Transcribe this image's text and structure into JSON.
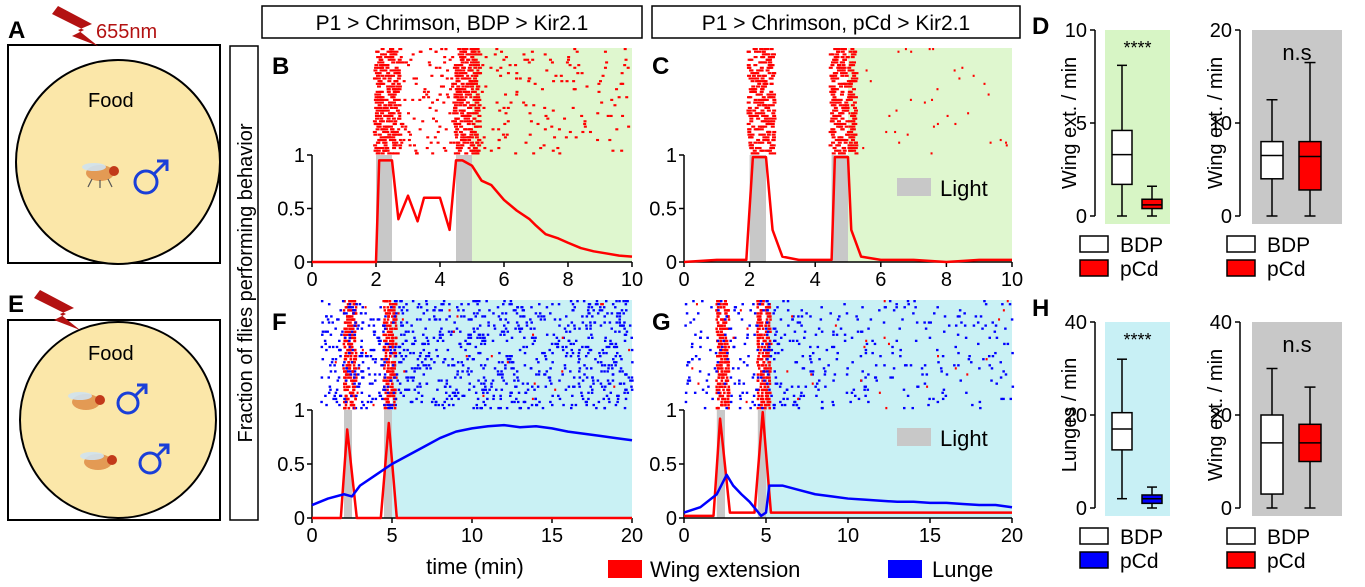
{
  "panel_letters": {
    "A": "A",
    "B": "B",
    "C": "C",
    "D": "D",
    "E": "E",
    "F": "F",
    "G": "G",
    "H": "H"
  },
  "panel_A": {
    "light_label": "655nm",
    "food_label": "Food"
  },
  "panel_E": {
    "food_label": "Food"
  },
  "genotype_left": "P1 > Chrimson, BDP > Kir2.1",
  "genotype_right": "P1 > Chrimson, pCd > Kir2.1",
  "shared_ylabel": "Fraction of flies performing behavior",
  "shared_xlabel": "time (min)",
  "light_legend": "Light",
  "behavior_legend": [
    {
      "name": "Wing extension",
      "color": "#ff0000"
    },
    {
      "name": "Lunge",
      "color": "#0000ff"
    }
  ],
  "chart_data": [
    {
      "panel": "B",
      "type": "line",
      "xlim": [
        0,
        10
      ],
      "ylim": [
        0,
        1
      ],
      "xticks": [
        "0",
        "2",
        "4",
        "6",
        "8",
        "10"
      ],
      "yticks": [
        "0",
        "0.5",
        "1"
      ],
      "light_windows": [
        [
          2,
          2.5
        ],
        [
          4.5,
          5
        ]
      ],
      "green_shade_from": 5,
      "series": [
        {
          "color": "#ff0000",
          "x": [
            0,
            1,
            2,
            2.1,
            2.5,
            2.7,
            3,
            3.3,
            3.5,
            4,
            4.3,
            4.5,
            4.7,
            5,
            5.3,
            5.6,
            6,
            6.4,
            6.8,
            7,
            7.3,
            7.7,
            8,
            8.4,
            8.8,
            9.2,
            9.6,
            10
          ],
          "y": [
            0,
            0,
            0,
            0.95,
            0.95,
            0.4,
            0.62,
            0.38,
            0.6,
            0.6,
            0.3,
            0.95,
            0.95,
            0.9,
            0.76,
            0.72,
            0.58,
            0.48,
            0.4,
            0.34,
            0.26,
            0.22,
            0.18,
            0.13,
            0.1,
            0.08,
            0.06,
            0.05
          ]
        }
      ]
    },
    {
      "panel": "C",
      "type": "line",
      "xlim": [
        0,
        10
      ],
      "ylim": [
        0,
        1
      ],
      "xticks": [
        "0",
        "2",
        "4",
        "6",
        "8",
        "10"
      ],
      "yticks": [
        "0",
        "0.5",
        "1"
      ],
      "light_windows": [
        [
          2,
          2.5
        ],
        [
          4.5,
          5
        ]
      ],
      "green_shade_from": 5,
      "series": [
        {
          "color": "#ff0000",
          "x": [
            0,
            1,
            1.9,
            2.1,
            2.5,
            2.7,
            3,
            3.5,
            4,
            4.5,
            4.6,
            5,
            5.1,
            5.4,
            6,
            7,
            8,
            9,
            10
          ],
          "y": [
            0,
            0.02,
            0.02,
            0.98,
            0.98,
            0.3,
            0.05,
            0.02,
            0.02,
            0.02,
            0.98,
            0.98,
            0.3,
            0.05,
            0.02,
            0.02,
            0,
            0.02,
            0.02
          ]
        }
      ]
    },
    {
      "panel": "F",
      "type": "line",
      "xlim": [
        0,
        20
      ],
      "ylim": [
        0,
        1
      ],
      "xticks": [
        "0",
        "5",
        "10",
        "15",
        "20"
      ],
      "yticks": [
        "0",
        "0.5",
        "1"
      ],
      "light_windows": [
        [
          2,
          2.5
        ],
        [
          4.5,
          5
        ]
      ],
      "blue_shade_from": 5,
      "series": [
        {
          "color": "#ff0000",
          "x": [
            0,
            1.8,
            2.2,
            2.8,
            4.3,
            4.8,
            5.3,
            6,
            20
          ],
          "y": [
            0,
            0,
            0.82,
            0,
            0,
            0.88,
            0,
            0,
            0
          ]
        },
        {
          "color": "#0000ff",
          "x": [
            0,
            1,
            2,
            2.5,
            3,
            4,
            5,
            6,
            7,
            8,
            9,
            10,
            11,
            12,
            13,
            14,
            15,
            16,
            17,
            18,
            19,
            20
          ],
          "y": [
            0.12,
            0.18,
            0.22,
            0.2,
            0.3,
            0.4,
            0.5,
            0.58,
            0.66,
            0.74,
            0.8,
            0.83,
            0.85,
            0.86,
            0.84,
            0.85,
            0.83,
            0.8,
            0.78,
            0.76,
            0.74,
            0.72
          ]
        }
      ]
    },
    {
      "panel": "G",
      "type": "line",
      "xlim": [
        0,
        20
      ],
      "ylim": [
        0,
        1
      ],
      "xticks": [
        "0",
        "5",
        "10",
        "15",
        "20"
      ],
      "yticks": [
        "0",
        "0.5",
        "1"
      ],
      "light_windows": [
        [
          2,
          2.5
        ],
        [
          4.5,
          5
        ]
      ],
      "blue_shade_from": 5,
      "series": [
        {
          "color": "#ff0000",
          "x": [
            0,
            1.8,
            2.2,
            2.8,
            4.3,
            4.8,
            5.3,
            6,
            10,
            15,
            20
          ],
          "y": [
            0.02,
            0.02,
            0.92,
            0.05,
            0.05,
            0.98,
            0.05,
            0.05,
            0.05,
            0.05,
            0.05
          ]
        },
        {
          "color": "#0000ff",
          "x": [
            0,
            1,
            2,
            2.6,
            3,
            3.5,
            4,
            4.7,
            5,
            5.2,
            6,
            7,
            8,
            9,
            10,
            11,
            12,
            13,
            14,
            15,
            16,
            17,
            18,
            19,
            20
          ],
          "y": [
            0.05,
            0.1,
            0.22,
            0.4,
            0.3,
            0.22,
            0.15,
            0.02,
            0.05,
            0.3,
            0.3,
            0.26,
            0.22,
            0.2,
            0.18,
            0.17,
            0.16,
            0.15,
            0.15,
            0.14,
            0.14,
            0.13,
            0.12,
            0.12,
            0.1
          ]
        }
      ]
    },
    {
      "panel": "D-left",
      "type": "box",
      "ylabel": "Wing ext. / min",
      "ylim": [
        0,
        10
      ],
      "yticks": [
        "0",
        "5",
        "10"
      ],
      "significance": "****",
      "background": "#d7f5c5",
      "boxes": [
        {
          "name": "BDP",
          "min": 0,
          "q1": 1.7,
          "median": 3.3,
          "q3": 4.6,
          "max": 8.1,
          "fill": "#ffffff"
        },
        {
          "name": "pCd",
          "min": 0,
          "q1": 0.4,
          "median": 0.6,
          "q3": 0.9,
          "max": 1.6,
          "fill": "#ff0000"
        }
      ]
    },
    {
      "panel": "D-right",
      "type": "box",
      "ylabel": "Wing ext. / min",
      "ylim": [
        0,
        20
      ],
      "yticks": [
        "0",
        "10",
        "20"
      ],
      "significance": "n.s",
      "background": "#c8c8c8",
      "boxes": [
        {
          "name": "BDP",
          "min": 0,
          "q1": 4,
          "median": 6.5,
          "q3": 8,
          "max": 12.5,
          "fill": "#ffffff"
        },
        {
          "name": "pCd",
          "min": 0,
          "q1": 2.8,
          "median": 6.4,
          "q3": 8,
          "max": 16.5,
          "fill": "#ff0000"
        }
      ]
    },
    {
      "panel": "H-left",
      "type": "box",
      "ylabel": "Lunges / min",
      "ylim": [
        0,
        40
      ],
      "yticks": [
        "0",
        "20",
        "40"
      ],
      "significance": "****",
      "background": "#c8f0f5",
      "boxes": [
        {
          "name": "BDP",
          "min": 2,
          "q1": 12.5,
          "median": 17,
          "q3": 20.5,
          "max": 32,
          "fill": "#ffffff"
        },
        {
          "name": "pCd",
          "min": 0,
          "q1": 1,
          "median": 2,
          "q3": 2.8,
          "max": 4.5,
          "fill": "#0000ff"
        }
      ]
    },
    {
      "panel": "H-right",
      "type": "box",
      "ylabel": "Wing ext. / min",
      "ylim": [
        0,
        40
      ],
      "yticks": [
        "0",
        "20",
        "40"
      ],
      "significance": "n.s",
      "background": "#c8c8c8",
      "boxes": [
        {
          "name": "BDP",
          "min": 0,
          "q1": 3,
          "median": 14,
          "q3": 20,
          "max": 30,
          "fill": "#ffffff"
        },
        {
          "name": "pCd",
          "min": 0,
          "q1": 10,
          "median": 14,
          "q3": 18,
          "max": 26,
          "fill": "#ff0000"
        }
      ]
    }
  ],
  "box_legends": {
    "D-left": [
      {
        "name": "BDP",
        "fill": "#ffffff"
      },
      {
        "name": "pCd",
        "fill": "#ff0000"
      }
    ],
    "D-right": [
      {
        "name": "BDP",
        "fill": "#ffffff"
      },
      {
        "name": "pCd",
        "fill": "#ff0000"
      }
    ],
    "H-left": [
      {
        "name": "BDP",
        "fill": "#ffffff"
      },
      {
        "name": "pCd",
        "fill": "#0000ff"
      }
    ],
    "H-right": [
      {
        "name": "BDP",
        "fill": "#ffffff"
      },
      {
        "name": "pCd",
        "fill": "#ff0000"
      }
    ]
  }
}
